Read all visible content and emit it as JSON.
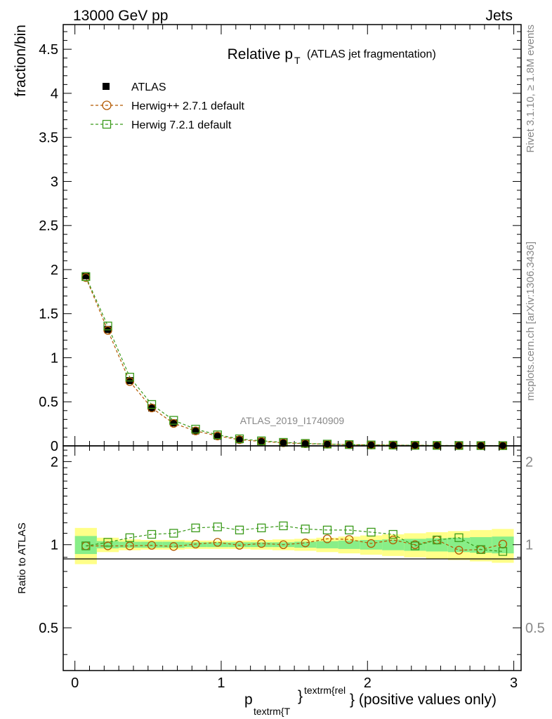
{
  "header": {
    "left": "13000 GeV pp",
    "right": "Jets"
  },
  "side_labels": {
    "rivet": "Rivet 3.1.10, ≥ 1.8M events",
    "mcplots": "mcplots.cern.ch [arXiv:1306.3436]"
  },
  "chart_data": [
    {
      "type": "scatter",
      "panel": "main",
      "title_main": "Relative p",
      "title_sub": "T",
      "title_rest": "(ATLAS jet fragmentation)",
      "watermark": "ATLAS_2019_I1740909",
      "ylabel": "fraction/bin",
      "xlim": [
        -0.08,
        3.05
      ],
      "ylim": [
        0,
        4.78
      ],
      "yticks": [
        0,
        0.5,
        1,
        1.5,
        2,
        2.5,
        3,
        3.5,
        4,
        4.5
      ],
      "ytick_labels": [
        "0",
        "0.5",
        "1",
        "1.5",
        "2",
        "2.5",
        "3",
        "3.5",
        "4",
        "4.5"
      ],
      "legend_position": "top-left",
      "x": [
        0.075,
        0.225,
        0.375,
        0.525,
        0.675,
        0.825,
        0.975,
        1.125,
        1.275,
        1.425,
        1.575,
        1.725,
        1.875,
        2.025,
        2.175,
        2.325,
        2.475,
        2.625,
        2.775,
        2.925
      ],
      "series": [
        {
          "name": "ATLAS",
          "marker": "filled-square",
          "color": "#000000",
          "values": [
            1.93,
            1.32,
            0.74,
            0.43,
            0.26,
            0.17,
            0.11,
            0.07,
            0.05,
            0.035,
            0.025,
            0.018,
            0.013,
            0.01,
            0.008,
            0.006,
            0.005,
            0.004,
            0.003,
            0.003
          ]
        },
        {
          "name": "Herwig++ 2.7.1 default",
          "marker": "open-circle",
          "color": "#b35900",
          "values": [
            1.91,
            1.31,
            0.73,
            0.43,
            0.255,
            0.17,
            0.112,
            0.07,
            0.05,
            0.035,
            0.025,
            0.019,
            0.0135,
            0.01,
            0.0083,
            0.006,
            0.0051,
            0.0038,
            0.0029,
            0.003
          ]
        },
        {
          "name": "Herwig 7.2.1 default",
          "marker": "open-square",
          "color": "#3a9a1a",
          "values": [
            1.92,
            1.36,
            0.78,
            0.47,
            0.29,
            0.19,
            0.125,
            0.08,
            0.057,
            0.04,
            0.028,
            0.02,
            0.0145,
            0.011,
            0.0087,
            0.006,
            0.0051,
            0.0042,
            0.0029,
            0.0028
          ]
        }
      ]
    },
    {
      "type": "scatter",
      "panel": "ratio",
      "ylabel": "Ratio to ATLAS",
      "xlabel_main": "p",
      "xlabel_sub": "textrm{T",
      "xlabel_sup": "textrm{rel",
      "xlabel_brace": "}",
      "xlabel_rest": "} (positive values only)",
      "xlim": [
        -0.08,
        3.05
      ],
      "ylim": [
        0.35,
        2.28
      ],
      "yticks": [
        0.5,
        1,
        2
      ],
      "ytick_labels": [
        "0.5",
        "1",
        "2"
      ],
      "xticks": [
        0,
        1,
        2,
        3
      ],
      "xtick_labels": [
        "0",
        "1",
        "2",
        "3"
      ],
      "bin_edges": [
        0,
        0.15,
        0.3,
        0.45,
        0.6,
        0.75,
        0.9,
        1.05,
        1.2,
        1.35,
        1.5,
        1.65,
        1.8,
        1.95,
        2.1,
        2.25,
        2.4,
        2.55,
        2.7,
        2.85,
        3.0
      ],
      "band_inner": [
        0.075,
        0.03,
        0.025,
        0.025,
        0.025,
        0.02,
        0.02,
        0.02,
        0.02,
        0.02,
        0.025,
        0.03,
        0.035,
        0.04,
        0.045,
        0.05,
        0.055,
        0.06,
        0.065,
        0.07
      ],
      "band_outer": [
        0.15,
        0.06,
        0.045,
        0.04,
        0.04,
        0.035,
        0.035,
        0.035,
        0.04,
        0.045,
        0.05,
        0.06,
        0.07,
        0.08,
        0.09,
        0.1,
        0.11,
        0.12,
        0.13,
        0.14
      ],
      "band_colors": {
        "inner": "#88ee88",
        "outer": "#ffff88"
      },
      "series": [
        {
          "name": "Herwig++ 2.7.1 default",
          "marker": "open-circle",
          "color": "#b35900",
          "values": [
            0.99,
            0.99,
            0.99,
            0.995,
            0.985,
            1.005,
            1.02,
            0.995,
            1.01,
            1.0,
            1.015,
            1.05,
            1.045,
            1.01,
            1.04,
            1.0,
            1.04,
            0.955,
            0.96,
            1.005
          ]
        },
        {
          "name": "Herwig 7.2.1 default",
          "marker": "open-square",
          "color": "#3a9a1a",
          "values": [
            0.99,
            1.02,
            1.06,
            1.09,
            1.1,
            1.15,
            1.16,
            1.13,
            1.15,
            1.17,
            1.14,
            1.13,
            1.13,
            1.11,
            1.09,
            0.99,
            1.04,
            1.06,
            0.96,
            0.945
          ]
        }
      ]
    }
  ]
}
